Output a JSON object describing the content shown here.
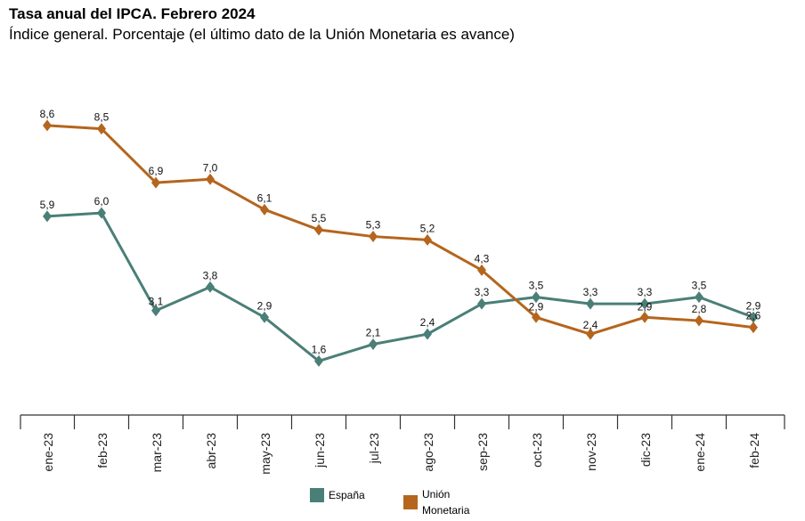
{
  "header": {
    "title": "Tasa anual del IPCA. Febrero 2024",
    "subtitle": "Índice general. Porcentaje (el último dato de la Unión Monetaria es avance)"
  },
  "chart_data": {
    "type": "line",
    "title": "Tasa anual del IPCA. Febrero 2024",
    "subtitle": "Índice general. Porcentaje (el último dato de la Unión Monetaria es avance)",
    "categories": [
      "ene-23",
      "feb-23",
      "mar-23",
      "abr-23",
      "may-23",
      "jun-23",
      "jul-23",
      "ago-23",
      "sep-23",
      "oct-23",
      "nov-23",
      "dic-23",
      "ene-24",
      "feb-24"
    ],
    "series": [
      {
        "name": "España",
        "color": "#4a7f77",
        "marker": "diamond",
        "values": [
          5.9,
          6.0,
          3.1,
          3.8,
          2.9,
          1.6,
          2.1,
          2.4,
          3.3,
          3.5,
          3.3,
          3.3,
          3.5,
          2.9
        ],
        "labels": [
          "5,9",
          "6,0",
          "3,1",
          "3,8",
          "2,9",
          "1,6",
          "2,1",
          "2,4",
          "3,3",
          "3,5",
          "3,3",
          "3,3",
          "3,5",
          "2,9"
        ]
      },
      {
        "name": "Unión Monetaria",
        "color": "#b5651d",
        "marker": "diamond",
        "values": [
          8.6,
          8.5,
          6.9,
          7.0,
          6.1,
          5.5,
          5.3,
          5.2,
          4.3,
          2.9,
          2.4,
          2.9,
          2.8,
          2.6
        ],
        "labels": [
          "8,6",
          "8,5",
          "6,9",
          "7,0",
          "6,1",
          "5,5",
          "5,3",
          "5,2",
          "4,3",
          "2,9",
          "2,4",
          "2,9",
          "2,8",
          "2,6"
        ]
      }
    ],
    "legend": {
      "position": "bottom",
      "items": [
        "España",
        "Unión Monetaria"
      ]
    },
    "grid": false,
    "xlabel": "",
    "ylabel": ""
  }
}
